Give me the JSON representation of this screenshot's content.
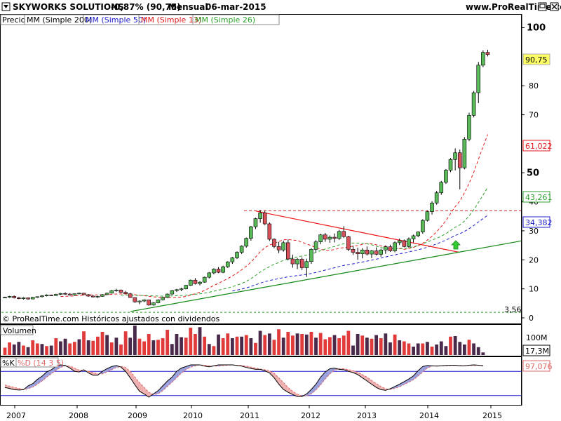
{
  "header": {
    "title": "SKYWORKS SOLUTIONS",
    "change": "-0,87% (90,75)",
    "period": "Mensual",
    "date": "06-mar-2015",
    "site": "www.ProRealTime.com"
  },
  "legend": {
    "price": "Precio",
    "ma200": "MM (Simple 200)",
    "ma50": "MM (Simple 50)",
    "ma13": "MM (Simple 13)",
    "ma26": "MM (Simple 26)"
  },
  "footer_note": "© ProRealTime.com  Históricos ajustados con dividendos",
  "volume_panel": {
    "label": "Volumen",
    "axis_label": "100M",
    "current": "17,3M"
  },
  "stoch_panel": {
    "k_label": "%K",
    "d_label": "%D (14 3 5)",
    "current": "97,076"
  },
  "price_axis": {
    "labels": [
      "100",
      "80",
      "70",
      "50",
      "40",
      "30",
      "20",
      "10",
      "0"
    ],
    "big": [
      "100",
      "50"
    ]
  },
  "value_tags": {
    "last": "90,75",
    "ma13": "61,022",
    "ma26": "43,261",
    "ma50": "34,382",
    "low": "3,56"
  },
  "colors": {
    "up": "#5aba5a",
    "down": "#d9505a",
    "ma13": "#e41a1c",
    "ma26": "#2ca02c",
    "ma50": "#1c1ccc",
    "vol_up": "#e03a3a",
    "vol_down": "#4a2a4a",
    "trend_red": "#ee1111",
    "trend_green": "#118811",
    "k_line": "#000000",
    "d_line": "#e06a6a",
    "fill_pos": "#9aa0dd",
    "fill_neg": "#eeb0b0",
    "tag_yellow": "#ffff66"
  },
  "chart_data": {
    "type": "candlestick",
    "title": "SKYWORKS SOLUTIONS",
    "x_labels": [
      "2007",
      "2008",
      "2009",
      "2010",
      "2011",
      "2012",
      "2013",
      "2014",
      "2015"
    ],
    "ylim": [
      0,
      104
    ],
    "y_ticks": [
      10,
      20,
      30,
      40,
      50,
      70,
      80,
      100
    ],
    "start": "2006-07",
    "interval": "monthly",
    "ohlc": [
      [
        7.0,
        7.3,
        6.8,
        7.1
      ],
      [
        7.1,
        7.6,
        6.9,
        7.4
      ],
      [
        7.4,
        7.7,
        6.7,
        6.9
      ],
      [
        6.9,
        7.2,
        6.4,
        6.6
      ],
      [
        6.6,
        7.1,
        6.3,
        6.9
      ],
      [
        6.9,
        7.0,
        6.3,
        6.5
      ],
      [
        6.5,
        7.2,
        6.4,
        7.1
      ],
      [
        7.1,
        7.4,
        6.9,
        7.3
      ],
      [
        7.3,
        7.8,
        7.0,
        7.6
      ],
      [
        7.6,
        8.1,
        7.4,
        7.9
      ],
      [
        7.9,
        8.0,
        7.5,
        7.7
      ],
      [
        7.7,
        8.3,
        7.6,
        8.1
      ],
      [
        8.1,
        8.6,
        7.9,
        8.4
      ],
      [
        8.4,
        8.8,
        8.0,
        8.2
      ],
      [
        8.2,
        8.5,
        7.7,
        7.9
      ],
      [
        7.9,
        8.4,
        7.6,
        8.3
      ],
      [
        8.3,
        8.7,
        8.1,
        8.5
      ],
      [
        8.5,
        8.6,
        7.8,
        8.0
      ],
      [
        8.0,
        8.2,
        7.3,
        7.5
      ],
      [
        7.5,
        7.8,
        7.0,
        7.2
      ],
      [
        7.2,
        7.6,
        6.9,
        7.4
      ],
      [
        7.4,
        8.2,
        7.3,
        8.0
      ],
      [
        8.0,
        8.7,
        7.9,
        8.5
      ],
      [
        8.5,
        9.6,
        8.4,
        9.4
      ],
      [
        9.4,
        10.0,
        9.0,
        9.6
      ],
      [
        9.6,
        9.8,
        8.6,
        8.8
      ],
      [
        8.8,
        9.3,
        8.1,
        8.3
      ],
      [
        8.3,
        8.6,
        6.9,
        7.0
      ],
      [
        7.0,
        7.1,
        5.2,
        5.5
      ],
      [
        5.5,
        6.0,
        4.7,
        5.8
      ],
      [
        5.8,
        6.4,
        5.4,
        6.2
      ],
      [
        6.2,
        6.3,
        4.2,
        4.4
      ],
      [
        4.4,
        5.4,
        4.2,
        5.2
      ],
      [
        5.2,
        6.4,
        5.0,
        6.2
      ],
      [
        6.2,
        7.3,
        6.0,
        7.0
      ],
      [
        7.0,
        8.4,
        6.8,
        8.2
      ],
      [
        8.2,
        9.6,
        8.0,
        9.4
      ],
      [
        9.4,
        10.0,
        8.9,
        9.7
      ],
      [
        9.7,
        10.4,
        9.2,
        10.0
      ],
      [
        10.0,
        11.4,
        9.8,
        11.2
      ],
      [
        11.2,
        13.2,
        11.0,
        13.0
      ],
      [
        13.0,
        13.7,
        11.5,
        11.8
      ],
      [
        11.8,
        12.6,
        11.2,
        12.3
      ],
      [
        12.3,
        14.2,
        12.1,
        14.0
      ],
      [
        14.0,
        15.8,
        13.6,
        15.5
      ],
      [
        15.5,
        17.1,
        15.0,
        16.8
      ],
      [
        16.8,
        17.5,
        15.4,
        15.7
      ],
      [
        15.7,
        18.0,
        15.4,
        17.6
      ],
      [
        17.6,
        19.5,
        17.2,
        19.3
      ],
      [
        19.3,
        21.0,
        18.6,
        20.7
      ],
      [
        20.7,
        22.9,
        20.3,
        22.6
      ],
      [
        22.6,
        25.0,
        22.0,
        24.7
      ],
      [
        24.7,
        27.7,
        24.2,
        27.4
      ],
      [
        27.4,
        31.7,
        26.6,
        31.4
      ],
      [
        31.4,
        34.5,
        30.6,
        34.2
      ],
      [
        34.2,
        37.2,
        32.8,
        36.2
      ],
      [
        36.2,
        36.9,
        32.0,
        32.4
      ],
      [
        32.4,
        32.9,
        26.5,
        27.1
      ],
      [
        27.1,
        27.4,
        24.0,
        24.6
      ],
      [
        24.6,
        26.2,
        22.3,
        23.4
      ],
      [
        23.4,
        26.6,
        22.8,
        25.9
      ],
      [
        25.9,
        27.0,
        19.8,
        20.3
      ],
      [
        20.3,
        21.8,
        17.3,
        18.6
      ],
      [
        18.6,
        20.6,
        16.8,
        20.2
      ],
      [
        20.2,
        20.8,
        16.5,
        17.3
      ],
      [
        17.3,
        20.4,
        14.1,
        19.4
      ],
      [
        19.4,
        24.0,
        18.6,
        23.6
      ],
      [
        23.6,
        26.8,
        22.5,
        26.2
      ],
      [
        26.2,
        29.0,
        25.4,
        28.6
      ],
      [
        28.6,
        29.3,
        26.2,
        27.1
      ],
      [
        27.1,
        28.4,
        25.9,
        27.8
      ],
      [
        27.8,
        29.1,
        26.0,
        27.4
      ],
      [
        27.4,
        30.3,
        26.8,
        29.8
      ],
      [
        29.8,
        31.6,
        27.5,
        28.0
      ],
      [
        28.0,
        28.3,
        23.0,
        23.6
      ],
      [
        23.6,
        24.8,
        21.7,
        22.6
      ],
      [
        22.6,
        24.2,
        20.0,
        22.1
      ],
      [
        22.1,
        24.0,
        20.5,
        23.4
      ],
      [
        23.4,
        24.6,
        21.5,
        22.0
      ],
      [
        22.0,
        23.4,
        20.6,
        23.1
      ],
      [
        23.1,
        24.3,
        21.5,
        21.9
      ],
      [
        21.9,
        23.8,
        21.1,
        23.4
      ],
      [
        23.4,
        25.0,
        22.1,
        24.5
      ],
      [
        24.5,
        25.2,
        22.7,
        23.1
      ],
      [
        23.1,
        26.4,
        22.6,
        25.9
      ],
      [
        25.9,
        27.3,
        25.1,
        26.6
      ],
      [
        26.6,
        27.0,
        24.3,
        24.6
      ],
      [
        24.6,
        27.7,
        24.2,
        27.2
      ],
      [
        27.2,
        28.7,
        26.0,
        28.3
      ],
      [
        28.3,
        29.8,
        27.8,
        29.6
      ],
      [
        29.6,
        34.0,
        29.0,
        33.6
      ],
      [
        33.6,
        37.0,
        33.2,
        36.6
      ],
      [
        36.6,
        40.2,
        35.6,
        39.6
      ],
      [
        39.6,
        43.8,
        39.0,
        43.1
      ],
      [
        43.1,
        47.2,
        42.4,
        46.7
      ],
      [
        46.7,
        51.3,
        46.2,
        50.9
      ],
      [
        50.9,
        55.1,
        50.2,
        54.6
      ],
      [
        54.6,
        58.4,
        50.8,
        56.9
      ],
      [
        56.9,
        58.0,
        44.3,
        51.7
      ],
      [
        51.7,
        62.3,
        51.2,
        61.6
      ],
      [
        61.6,
        70.7,
        60.9,
        69.8
      ],
      [
        69.8,
        78.2,
        69.1,
        77.6
      ],
      [
        77.6,
        88.2,
        74.0,
        87.1
      ],
      [
        87.1,
        92.2,
        86.4,
        91.5
      ],
      [
        91.5,
        92.4,
        90.1,
        90.75
      ]
    ],
    "volume": [
      [
        14,
        1
      ],
      [
        24,
        1
      ],
      [
        20,
        0
      ],
      [
        25,
        0
      ],
      [
        18,
        1
      ],
      [
        15,
        0
      ],
      [
        28,
        1
      ],
      [
        22,
        1
      ],
      [
        21,
        0
      ],
      [
        17,
        1
      ],
      [
        18,
        0
      ],
      [
        32,
        1
      ],
      [
        26,
        0
      ],
      [
        31,
        0
      ],
      [
        22,
        1
      ],
      [
        25,
        1
      ],
      [
        30,
        0
      ],
      [
        45,
        1
      ],
      [
        28,
        0
      ],
      [
        27,
        1
      ],
      [
        35,
        1
      ],
      [
        44,
        1
      ],
      [
        38,
        0
      ],
      [
        24,
        1
      ],
      [
        33,
        0
      ],
      [
        20,
        1
      ],
      [
        45,
        1
      ],
      [
        33,
        0
      ],
      [
        56,
        0
      ],
      [
        31,
        1
      ],
      [
        26,
        1
      ],
      [
        40,
        1
      ],
      [
        28,
        0
      ],
      [
        29,
        1
      ],
      [
        32,
        1
      ],
      [
        48,
        1
      ],
      [
        21,
        0
      ],
      [
        40,
        0
      ],
      [
        34,
        0
      ],
      [
        33,
        1
      ],
      [
        52,
        1
      ],
      [
        40,
        1
      ],
      [
        53,
        0
      ],
      [
        35,
        1
      ],
      [
        21,
        0
      ],
      [
        17,
        1
      ],
      [
        39,
        0
      ],
      [
        32,
        1
      ],
      [
        41,
        1
      ],
      [
        32,
        0
      ],
      [
        35,
        1
      ],
      [
        35,
        0
      ],
      [
        38,
        1
      ],
      [
        32,
        0
      ],
      [
        23,
        1
      ],
      [
        46,
        0
      ],
      [
        38,
        1
      ],
      [
        41,
        0
      ],
      [
        29,
        1
      ],
      [
        49,
        1
      ],
      [
        33,
        0
      ],
      [
        44,
        1
      ],
      [
        37,
        1
      ],
      [
        41,
        0
      ],
      [
        40,
        1
      ],
      [
        39,
        0
      ],
      [
        44,
        1
      ],
      [
        33,
        0
      ],
      [
        42,
        1
      ],
      [
        30,
        1
      ],
      [
        34,
        1
      ],
      [
        38,
        0
      ],
      [
        32,
        1
      ],
      [
        37,
        1
      ],
      [
        46,
        1
      ],
      [
        18,
        0
      ],
      [
        40,
        0
      ],
      [
        37,
        1
      ],
      [
        33,
        0
      ],
      [
        31,
        1
      ],
      [
        38,
        0
      ],
      [
        32,
        1
      ],
      [
        41,
        0
      ],
      [
        24,
        0
      ],
      [
        39,
        1
      ],
      [
        28,
        0
      ],
      [
        26,
        1
      ],
      [
        22,
        1
      ],
      [
        16,
        0
      ],
      [
        22,
        0
      ],
      [
        22,
        1
      ],
      [
        25,
        0
      ],
      [
        16,
        1
      ],
      [
        20,
        0
      ],
      [
        26,
        0
      ],
      [
        17,
        0
      ],
      [
        35,
        1
      ],
      [
        36,
        0
      ],
      [
        25,
        0
      ],
      [
        20,
        0
      ],
      [
        29,
        1
      ],
      [
        22,
        0
      ],
      [
        15,
        0
      ],
      [
        5,
        0
      ]
    ],
    "stoch_k": [
      30,
      27,
      23,
      22,
      23,
      35,
      42,
      55,
      65,
      78,
      85,
      95,
      100,
      98,
      90,
      80,
      78,
      85,
      75,
      68,
      68,
      80,
      88,
      95,
      98,
      93,
      80,
      60,
      38,
      18,
      10,
      0,
      10,
      20,
      35,
      50,
      62,
      80,
      90,
      95,
      100,
      100,
      100,
      96,
      94,
      97,
      100,
      100,
      100,
      100,
      98,
      96,
      92,
      89,
      86,
      86,
      82,
      75,
      60,
      40,
      24,
      15,
      8,
      2,
      2,
      10,
      24,
      40,
      62,
      78,
      88,
      90,
      86,
      85,
      80,
      76,
      70,
      60,
      50,
      40,
      30,
      23,
      21,
      26,
      33,
      40,
      48,
      56,
      66,
      82,
      95,
      98,
      97,
      96,
      97,
      98,
      99,
      99,
      97,
      97,
      99,
      100,
      99,
      97
    ],
    "stoch_d": [
      38,
      34,
      30,
      27,
      24,
      26,
      31,
      40,
      50,
      62,
      72,
      83,
      92,
      97,
      96,
      90,
      84,
      82,
      80,
      76,
      72,
      72,
      78,
      85,
      92,
      95,
      92,
      80,
      62,
      45,
      30,
      15,
      8,
      10,
      20,
      33,
      46,
      60,
      74,
      85,
      93,
      97,
      100,
      99,
      97,
      96,
      96,
      98,
      99,
      100,
      99,
      98,
      96,
      93,
      90,
      87,
      85,
      81,
      74,
      60,
      45,
      30,
      18,
      9,
      4,
      4,
      10,
      22,
      38,
      56,
      72,
      83,
      88,
      88,
      85,
      82,
      77,
      70,
      62,
      52,
      42,
      33,
      26,
      24,
      27,
      32,
      39,
      46,
      54,
      65,
      78,
      90,
      96,
      97,
      97,
      97,
      98,
      98,
      98,
      97,
      98,
      98,
      99,
      98
    ]
  }
}
